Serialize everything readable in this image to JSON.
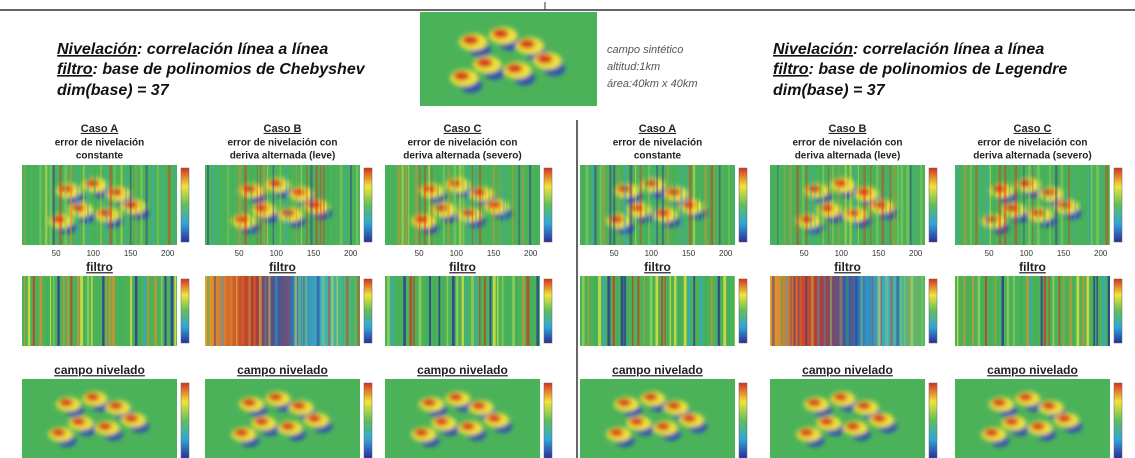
{
  "header": {
    "left": {
      "line1": {
        "label": "Nivelación",
        "text": ": correlación línea a línea"
      },
      "line2": {
        "label": "filtro",
        "text": ": base de polinomios de Chebyshev"
      },
      "line3": "dim(base) = 37"
    },
    "center": [
      "campo sintético",
      "altitud:1km",
      "área:40km x 40km"
    ],
    "right": {
      "line1": {
        "label": "Nivelación",
        "text": ": correlación línea a línea"
      },
      "line2": {
        "label": "filtro",
        "text": ": base de polinomios de Legendre"
      },
      "line3": "dim(base) = 37"
    }
  },
  "groups": [
    {
      "cases": [
        {
          "title": "Caso A",
          "subtitle": [
            "error de nivelación",
            "constante"
          ]
        },
        {
          "title": "Caso B",
          "subtitle": [
            "error de nivelación con",
            "deriva alternada (leve)"
          ]
        },
        {
          "title": "Caso C",
          "subtitle": [
            "error de nivelación con",
            "deriva alternada (severo)"
          ]
        }
      ]
    },
    {
      "cases": [
        {
          "title": "Caso A",
          "subtitle": [
            "error de nivelación",
            "constante"
          ]
        },
        {
          "title": "Caso B",
          "subtitle": [
            "error de nivelación con",
            "deriva alternada (leve)"
          ]
        },
        {
          "title": "Caso C",
          "subtitle": [
            "error de nivelación con",
            "deriva alternada (severo)"
          ]
        }
      ]
    }
  ],
  "x_tick_labels": [
    "50",
    "100",
    "150",
    "200"
  ],
  "row_labels": {
    "filter": "filtro",
    "leveled": "campo nivelado"
  }
}
